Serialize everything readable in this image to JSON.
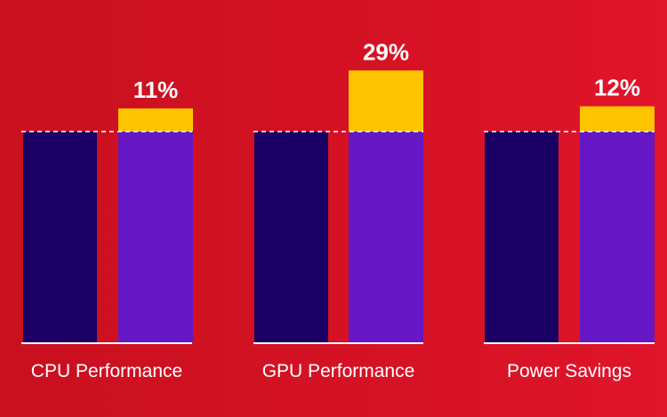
{
  "chart_data": {
    "type": "bar",
    "categories": [
      "CPU Performance",
      "GPU Performance",
      "Power Savings"
    ],
    "baseline_value": 100,
    "series": [
      {
        "values": [
          100,
          100,
          100
        ]
      },
      {
        "values": [
          111,
          129,
          112
        ]
      }
    ],
    "data_labels": [
      "11%",
      "29%",
      "12%"
    ],
    "colors": {
      "background": "#d41224",
      "baseline_bar": "#1a0063",
      "improved_bar": "#6618c4",
      "gain": "#ffc400",
      "text": "#ffffff"
    }
  }
}
